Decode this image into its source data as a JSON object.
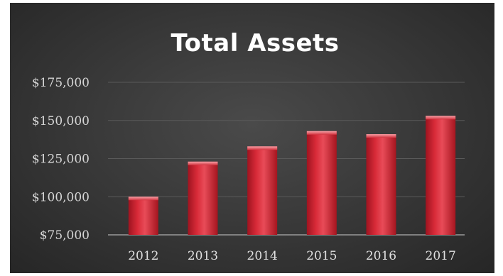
{
  "chart_data": {
    "type": "bar",
    "title": "Total Assets",
    "xlabel": "",
    "ylabel": "",
    "categories": [
      "2012",
      "2013",
      "2014",
      "2015",
      "2016",
      "2017"
    ],
    "values": [
      100000,
      123000,
      133000,
      143000,
      141000,
      153000
    ],
    "ylim": [
      75000,
      175000
    ],
    "yticks": [
      "$75,000",
      "$100,000",
      "$125,000",
      "$150,000",
      "$175,000"
    ],
    "ytick_values": [
      75000,
      100000,
      125000,
      150000,
      175000
    ],
    "grid": true,
    "legend": "none",
    "colors": {
      "bar": "#c8202e",
      "bar_highlight": "#f0606a",
      "background": "#3a3a3a"
    }
  }
}
